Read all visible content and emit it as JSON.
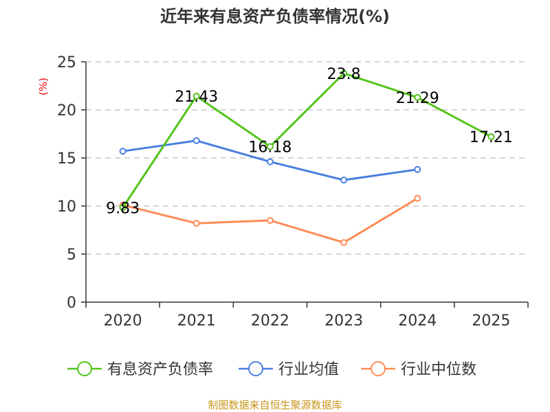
{
  "chart_data": {
    "type": "line",
    "title": "近年来有息资产负债率情况(%)",
    "ylabel": "(%)",
    "xlabel": "",
    "ylim": [
      0,
      25
    ],
    "yticks": [
      0,
      5,
      10,
      15,
      20,
      25
    ],
    "categories": [
      "2020",
      "2021",
      "2022",
      "2023",
      "2024",
      "2025"
    ],
    "grid": true,
    "legend_position": "bottom",
    "series": [
      {
        "name": "有息资产负债率",
        "color": "#52c41a",
        "values": [
          9.83,
          21.43,
          16.18,
          23.8,
          21.29,
          17.21
        ],
        "labels": [
          "9.83",
          "21.43",
          "16.18",
          "23.8",
          "21.29",
          "17.21"
        ]
      },
      {
        "name": "行业均值",
        "color": "#4a7fe0",
        "values": [
          15.7,
          16.8,
          14.6,
          12.7,
          13.8,
          null
        ]
      },
      {
        "name": "行业中位数",
        "color": "#ff8c55",
        "values": [
          10.1,
          8.2,
          8.5,
          6.2,
          10.8,
          null
        ]
      }
    ]
  },
  "source": "制图数据来自恒生聚源数据库"
}
